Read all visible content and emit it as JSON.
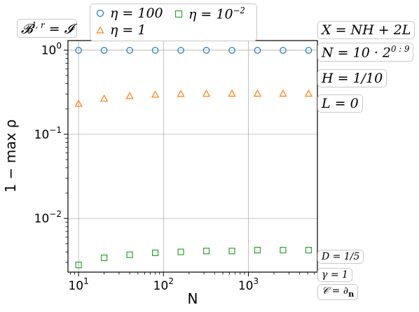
{
  "chart_data": {
    "type": "scatter",
    "title": "",
    "xlabel": "N",
    "ylabel": "1 − max ρ",
    "x": [
      10,
      20,
      40,
      80,
      160,
      320,
      640,
      1280,
      2560,
      5120
    ],
    "xscale": "log",
    "yscale": "log",
    "xlim": [
      7.5,
      6500
    ],
    "ylim": [
      0.0023,
      1.3
    ],
    "xticks": [
      {
        "value": 10,
        "base": "10",
        "exp": "1"
      },
      {
        "value": 100,
        "base": "10",
        "exp": "2"
      },
      {
        "value": 1000,
        "base": "10",
        "exp": "3"
      }
    ],
    "yticks": [
      {
        "value": 1,
        "base": "10",
        "exp": "0"
      },
      {
        "value": 0.1,
        "base": "10",
        "exp": "−1"
      },
      {
        "value": 0.01,
        "base": "10",
        "exp": "−2"
      }
    ],
    "grid": true,
    "legend_placement": "top",
    "series": [
      {
        "name": "η = 100",
        "marker": "circle",
        "color": "#1f77b4",
        "values": [
          0.995,
          0.995,
          0.995,
          0.995,
          0.995,
          0.995,
          0.995,
          0.995,
          0.995,
          0.995
        ]
      },
      {
        "name": "η = 1",
        "marker": "triangle",
        "color": "#ff7f0e",
        "values": [
          0.23,
          0.265,
          0.285,
          0.296,
          0.302,
          0.303,
          0.304,
          0.304,
          0.304,
          0.304
        ]
      },
      {
        "name": "η = 10",
        "name_sup": "−2",
        "marker": "square",
        "color": "#2ca02c",
        "values": [
          0.0028,
          0.0034,
          0.0037,
          0.0039,
          0.004,
          0.0041,
          0.0041,
          0.0042,
          0.0042,
          0.0042
        ]
      }
    ]
  },
  "annotations": {
    "bc": {
      "main": "𝓑",
      "sup": "l, r",
      "rest": " = 𝓘"
    },
    "x_def": "X = NH + 2L",
    "n_def": {
      "main": "N = 10 · 2",
      "sup": "0 : 9"
    },
    "h_def": "H = 1/10",
    "l_def": "L = 0",
    "d_def": "D = 1/5",
    "gamma_def": "γ = 1",
    "c_def": "𝒞 = ∂",
    "c_sub": "n"
  }
}
